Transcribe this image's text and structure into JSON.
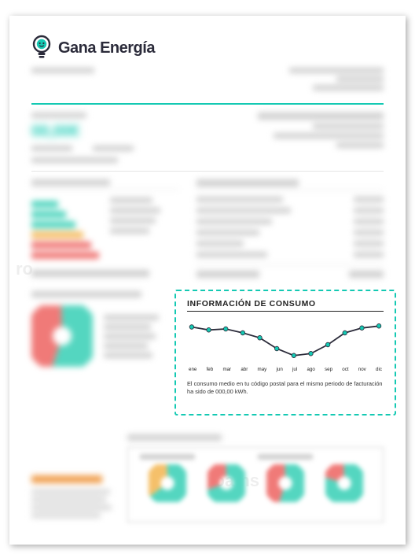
{
  "logo": {
    "brand": "Gana Energía"
  },
  "theme": {
    "accent": "#14c9b3",
    "text_dark": "#2b2b3a",
    "grey": "#cfcfcf",
    "orange": "#f0a050",
    "red": "#f07a78",
    "green": "#54d6c0"
  },
  "price_placeholder": "00,00€",
  "impacto": {
    "bars": [
      {
        "w": 34,
        "color": "#54d6c0"
      },
      {
        "w": 44,
        "color": "#54d6c0"
      },
      {
        "w": 56,
        "color": "#54d6c0"
      },
      {
        "w": 66,
        "color": "#f5c06a"
      },
      {
        "w": 76,
        "color": "#f07a78"
      },
      {
        "w": 86,
        "color": "#f07a78"
      }
    ]
  },
  "donut_main": {
    "segments": [
      {
        "pct": 55,
        "color": "#54d6c0"
      },
      {
        "pct": 45,
        "color": "#f07a78"
      }
    ],
    "inner_ratio": 0.55
  },
  "highlight": {
    "title": "INFORMACIÓN DE CONSUMO",
    "months": [
      "ene",
      "feb",
      "mar",
      "abr",
      "may",
      "jun",
      "jul",
      "ago",
      "sep",
      "oct",
      "nov",
      "dic"
    ],
    "values": [
      34,
      31,
      32,
      28,
      23,
      12,
      5,
      7,
      16,
      28,
      33,
      35
    ],
    "y_range": [
      0,
      40
    ],
    "line_color": "#2b2b3a",
    "marker_color": "#14c9b3",
    "marker_radius": 2.8,
    "line_width": 1.8,
    "footer": "El consumo medio en tu código postal para el mismo periodo de facturación ha sido de 000,00 kWh."
  },
  "donut_row": {
    "items": [
      {
        "segments": [
          {
            "pct": 65,
            "color": "#54d6c0"
          },
          {
            "pct": 35,
            "color": "#f5c06a"
          }
        ]
      },
      {
        "segments": [
          {
            "pct": 70,
            "color": "#54d6c0"
          },
          {
            "pct": 30,
            "color": "#f07a78"
          }
        ]
      },
      {
        "segments": [
          {
            "pct": 55,
            "color": "#54d6c0"
          },
          {
            "pct": 45,
            "color": "#f07a78"
          }
        ]
      },
      {
        "segments": [
          {
            "pct": 80,
            "color": "#54d6c0"
          },
          {
            "pct": 20,
            "color": "#f07a78"
          }
        ]
      }
    ],
    "inner_ratio": 0.6
  }
}
